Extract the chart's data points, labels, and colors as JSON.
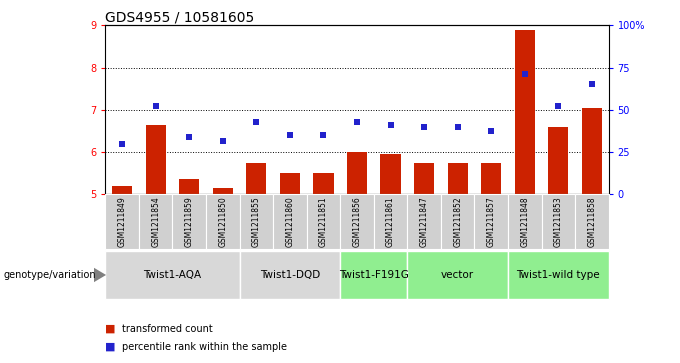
{
  "title": "GDS4955 / 10581605",
  "samples": [
    "GSM1211849",
    "GSM1211854",
    "GSM1211859",
    "GSM1211850",
    "GSM1211855",
    "GSM1211860",
    "GSM1211851",
    "GSM1211856",
    "GSM1211861",
    "GSM1211847",
    "GSM1211852",
    "GSM1211857",
    "GSM1211848",
    "GSM1211853",
    "GSM1211858"
  ],
  "bar_values": [
    5.2,
    6.65,
    5.35,
    5.15,
    5.75,
    5.5,
    5.5,
    6.0,
    5.95,
    5.75,
    5.75,
    5.75,
    8.9,
    6.6,
    7.05
  ],
  "scatter_values": [
    6.2,
    7.1,
    6.35,
    6.25,
    6.7,
    6.4,
    6.4,
    6.7,
    6.65,
    6.6,
    6.6,
    6.5,
    7.85,
    7.1,
    7.6
  ],
  "bar_color": "#cc2200",
  "scatter_color": "#2222cc",
  "ylim_left": [
    5,
    9
  ],
  "ylim_right": [
    0,
    100
  ],
  "yticks_left": [
    5,
    6,
    7,
    8,
    9
  ],
  "yticks_right": [
    0,
    25,
    50,
    75,
    100
  ],
  "ytick_labels_right": [
    "0",
    "25",
    "50",
    "75",
    "100%"
  ],
  "groups": [
    {
      "label": "Twist1-AQA",
      "start": 0,
      "end": 3,
      "color": "#d8d8d8"
    },
    {
      "label": "Twist1-DQD",
      "start": 4,
      "end": 6,
      "color": "#d8d8d8"
    },
    {
      "label": "Twist1-F191G",
      "start": 7,
      "end": 8,
      "color": "#90ee90"
    },
    {
      "label": "vector",
      "start": 9,
      "end": 11,
      "color": "#90ee90"
    },
    {
      "label": "Twist1-wild type",
      "start": 12,
      "end": 14,
      "color": "#90ee90"
    }
  ],
  "sample_cell_color": "#d0d0d0",
  "legend_bar_label": "transformed count",
  "legend_scatter_label": "percentile rank within the sample",
  "genotype_label": "genotype/variation",
  "title_fontsize": 10,
  "tick_fontsize": 7,
  "sample_fontsize": 5.5,
  "group_fontsize": 7.5,
  "legend_fontsize": 7
}
